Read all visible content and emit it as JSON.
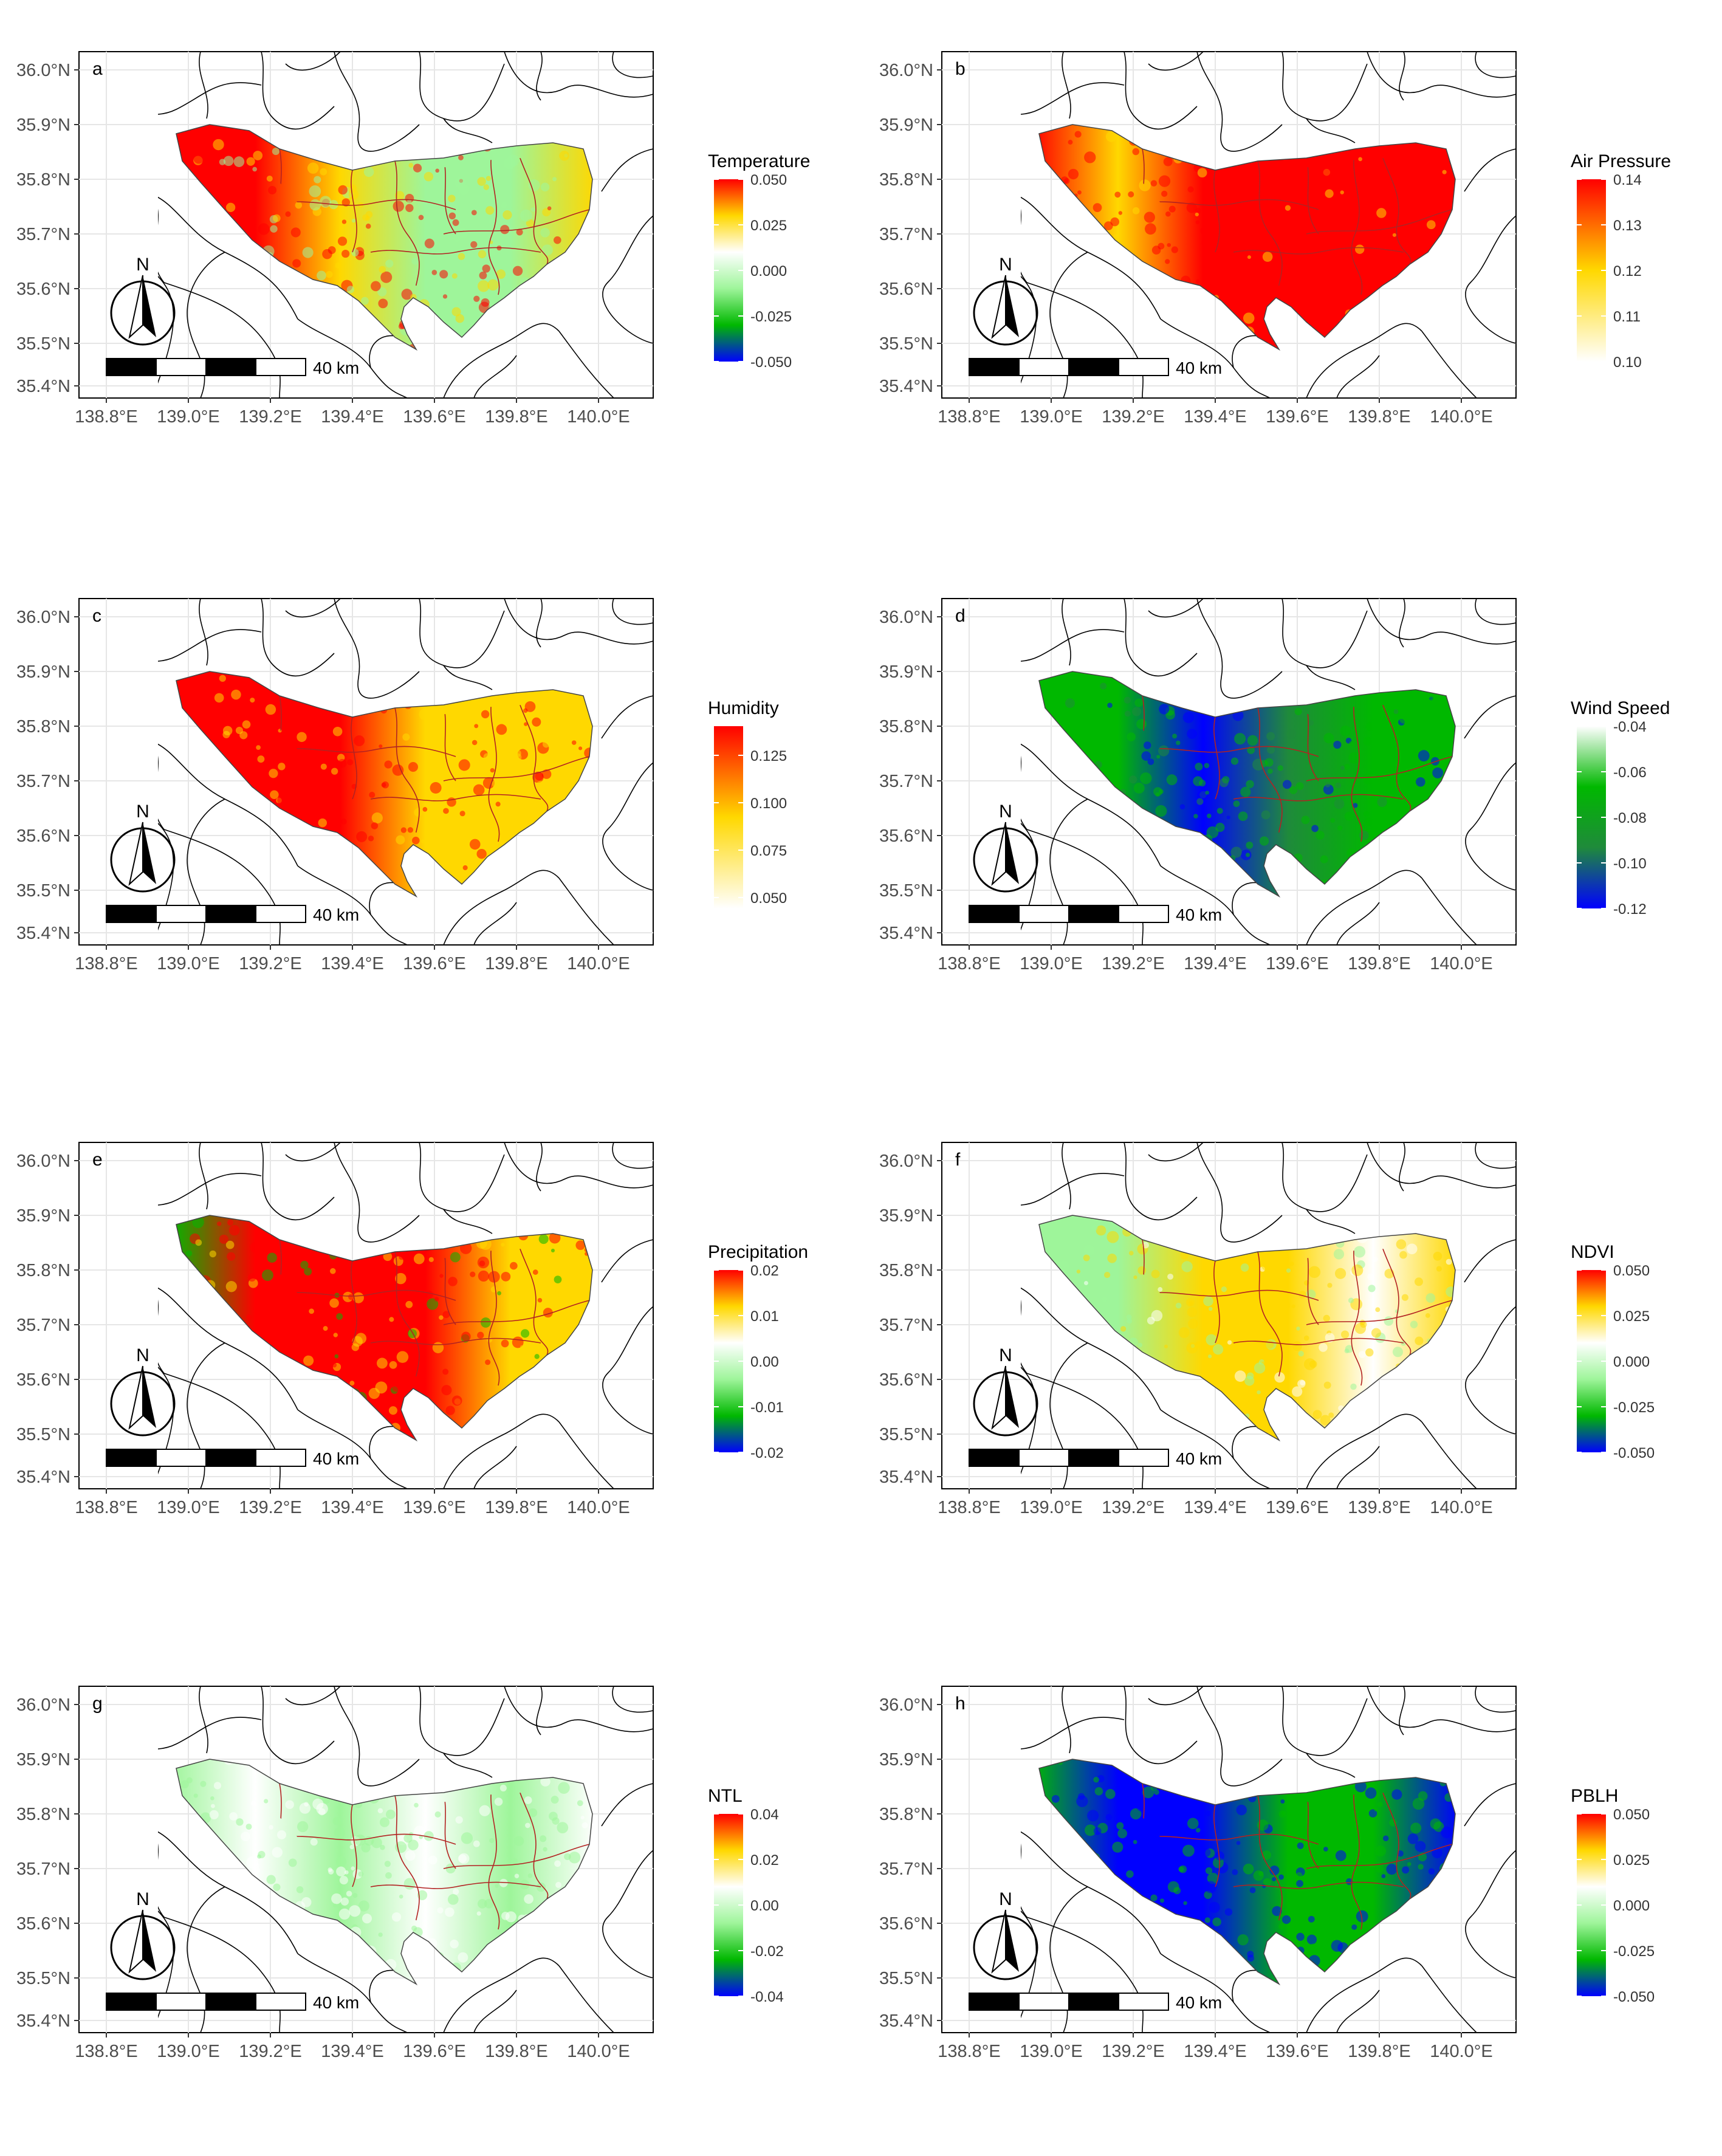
{
  "figure": {
    "tick_labels": {
      "lat": [
        "36.0°N",
        "35.9°N",
        "35.8°N",
        "35.7°N",
        "35.6°N",
        "35.5°N",
        "35.4°N"
      ],
      "lon": [
        "138.8°E",
        "139.0°E",
        "139.2°E",
        "139.4°E",
        "139.6°E",
        "139.8°E",
        "140.0°E"
      ]
    },
    "north_label": "N",
    "scale_label": "40 km",
    "colors": {
      "neg_max": "#0000ff",
      "neg_mid": "#00b800",
      "light_green": "#9ef59a",
      "zero": "#ffffff",
      "pos_mid": "#ffd800",
      "pos_max": "#ff0000",
      "dark_green": "#1f8a3b",
      "boundary": "#000000",
      "ward": "#b22222"
    }
  },
  "panels": [
    {
      "id": "a",
      "letter": "a",
      "legend_title": "Temperature",
      "legend_ticks": [
        "0.050",
        "0.025",
        "0.000",
        "-0.025",
        "-0.050"
      ],
      "colorbar": [
        "pos_max",
        "pos_mid",
        "zero",
        "light_green",
        "neg_mid",
        "neg_max"
      ],
      "map_pattern": [
        "pos_max",
        "pos_max",
        "pos_mid",
        "light_green",
        "light_green",
        "pos_mid"
      ]
    },
    {
      "id": "b",
      "letter": "b",
      "legend_title": "Air Pressure",
      "legend_ticks": [
        "0.14",
        "0.13",
        "0.12",
        "0.11",
        "0.10"
      ],
      "colorbar": [
        "pos_max",
        "pos_mid",
        "zero"
      ],
      "map_pattern": [
        "pos_max",
        "pos_mid",
        "pos_max",
        "pos_max",
        "pos_max",
        "pos_max"
      ]
    },
    {
      "id": "c",
      "letter": "c",
      "legend_title": "Humidity",
      "legend_ticks": [
        "0.125",
        "0.100",
        "0.075",
        "0.050"
      ],
      "colorbar": [
        "pos_max",
        "pos_mid",
        "zero"
      ],
      "map_pattern": [
        "pos_max",
        "pos_max",
        "pos_max",
        "pos_mid",
        "pos_mid",
        "pos_mid"
      ]
    },
    {
      "id": "d",
      "letter": "d",
      "legend_title": "Wind Speed",
      "legend_ticks": [
        "-0.04",
        "-0.06",
        "-0.08",
        "-0.10",
        "-0.12"
      ],
      "colorbar": [
        "zero",
        "neg_mid",
        "dark_green",
        "neg_max"
      ],
      "map_pattern": [
        "neg_mid",
        "neg_mid",
        "neg_max",
        "dark_green",
        "neg_mid",
        "neg_mid"
      ]
    },
    {
      "id": "e",
      "letter": "e",
      "legend_title": "Precipitation",
      "legend_ticks": [
        "0.02",
        "0.01",
        "0.00",
        "-0.01",
        "-0.02"
      ],
      "colorbar": [
        "pos_max",
        "pos_mid",
        "zero",
        "light_green",
        "neg_mid",
        "neg_max"
      ],
      "map_pattern": [
        "neg_mid",
        "pos_max",
        "pos_max",
        "pos_max",
        "pos_mid",
        "pos_mid"
      ]
    },
    {
      "id": "f",
      "letter": "f",
      "legend_title": "NDVI",
      "legend_ticks": [
        "0.050",
        "0.025",
        "0.000",
        "-0.025",
        "-0.050"
      ],
      "colorbar": [
        "pos_max",
        "pos_mid",
        "zero",
        "light_green",
        "neg_mid",
        "neg_max"
      ],
      "map_pattern": [
        "light_green",
        "light_green",
        "pos_mid",
        "pos_mid",
        "zero",
        "pos_mid"
      ]
    },
    {
      "id": "g",
      "letter": "g",
      "legend_title": "NTL",
      "legend_ticks": [
        "0.04",
        "0.02",
        "0.00",
        "-0.02",
        "-0.04"
      ],
      "colorbar": [
        "pos_max",
        "pos_mid",
        "zero",
        "light_green",
        "neg_mid",
        "neg_max"
      ],
      "map_pattern": [
        "light_green",
        "zero",
        "light_green",
        "zero",
        "light_green",
        "zero"
      ]
    },
    {
      "id": "h",
      "letter": "h",
      "legend_title": "PBLH",
      "legend_ticks": [
        "0.050",
        "0.025",
        "0.000",
        "-0.025",
        "-0.050"
      ],
      "colorbar": [
        "pos_max",
        "pos_mid",
        "zero",
        "light_green",
        "neg_mid",
        "neg_max"
      ],
      "map_pattern": [
        "neg_mid",
        "neg_max",
        "neg_max",
        "neg_mid",
        "neg_mid",
        "neg_max"
      ]
    }
  ]
}
